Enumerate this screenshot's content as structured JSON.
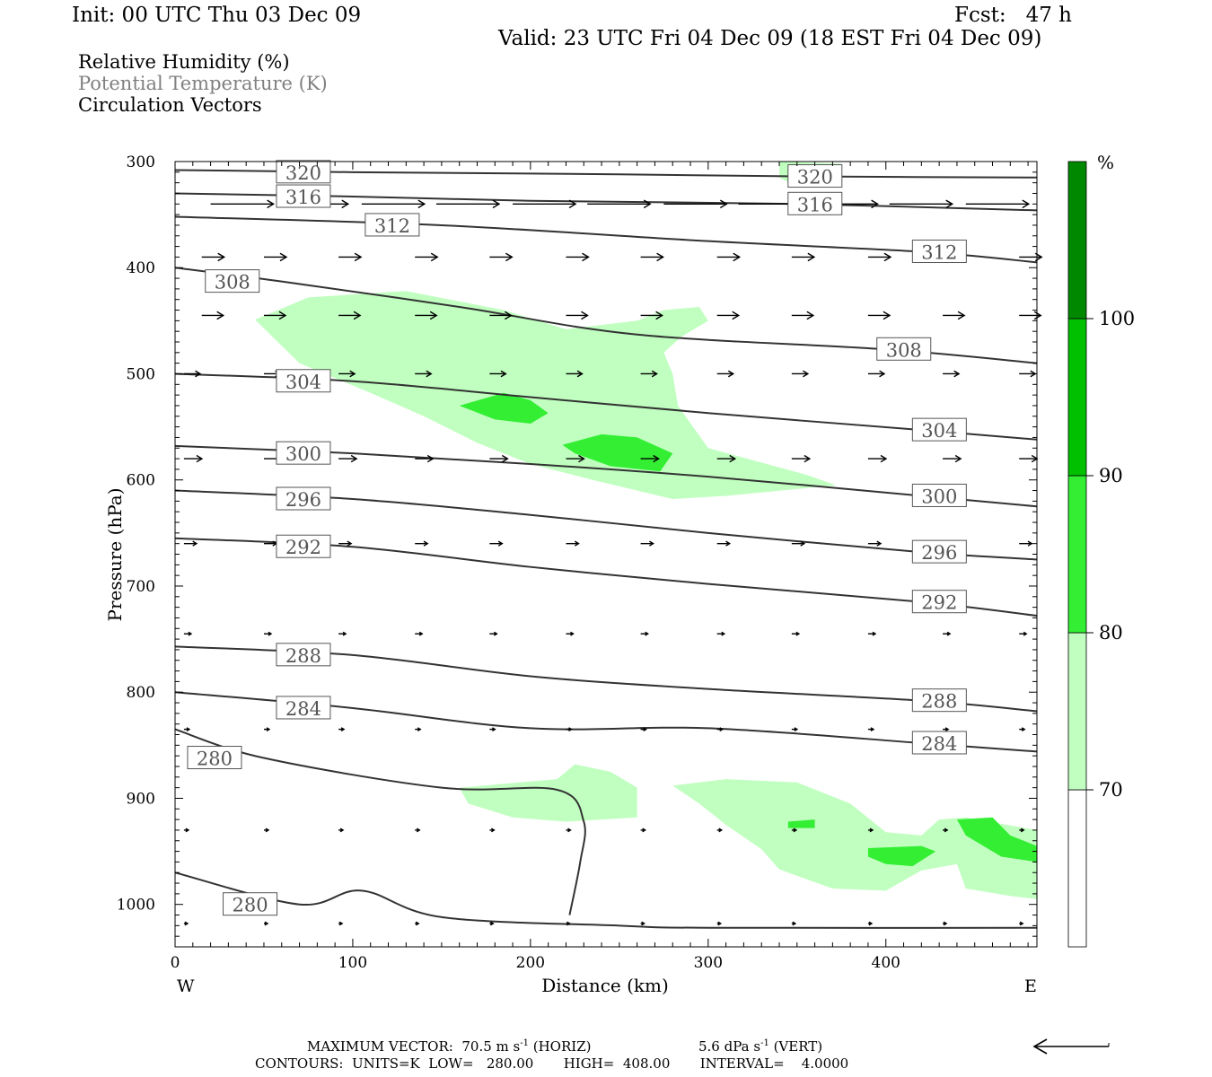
{
  "header": {
    "init": "Init: 00 UTC Thu 03 Dec 09",
    "fcst": "Fcst:   47 h",
    "valid": "Valid: 23 UTC Fri 04 Dec 09 (18 EST Fri 04 Dec 09)",
    "fields": [
      "Relative Humidity (%)",
      "Potential Temperature (K)",
      "Circulation Vectors"
    ]
  },
  "footer": {
    "max_vector": "MAXIMUM VECTOR:  70.5 m s",
    "max_vector_sup": "-1",
    "max_vector_horiz": " (HORIZ)",
    "max_vector_vert": "5.6 dPa s",
    "max_vector_vert_sup": "-1",
    "max_vector_vert_tail": " (VERT)",
    "contours": "CONTOURS:  UNITS=K  LOW=   280.00       HIGH=  408.00       INTERVAL=    4.0000"
  },
  "colors": {
    "rh70": "#c0ffc0",
    "rh80": "#33ee33",
    "rh90": "#00c000",
    "rh100": "#008800",
    "contour": "#333333"
  },
  "chart_data": {
    "type": "cross-section",
    "xlabel": "Distance (km)",
    "ylabel": "Pressure (hPa)",
    "xlim": [
      0,
      485
    ],
    "ylim": [
      1040,
      300
    ],
    "xticks": [
      "0",
      "100",
      "200",
      "300",
      "400"
    ],
    "xtick_values": [
      0,
      100,
      200,
      300,
      400
    ],
    "yticks": [
      "300",
      "400",
      "500",
      "600",
      "700",
      "800",
      "900",
      "1000"
    ],
    "ytick_values": [
      300,
      400,
      500,
      600,
      700,
      800,
      900,
      1000
    ],
    "west_label": "W",
    "east_label": "E",
    "colorbar": {
      "unit": "%",
      "levels": [
        "70",
        "80",
        "90",
        "100"
      ],
      "level_values": [
        70,
        80,
        90,
        100
      ],
      "colors": [
        "#ffffff",
        "#c0ffc0",
        "#33ee33",
        "#00c000",
        "#008800"
      ]
    },
    "theta_contours": [
      {
        "label": "320",
        "points": [
          [
            0,
            308
          ],
          [
            100,
            310
          ],
          [
            250,
            312
          ],
          [
            350,
            314
          ],
          [
            485,
            315
          ]
        ]
      },
      {
        "label": "316",
        "points": [
          [
            0,
            330
          ],
          [
            100,
            333
          ],
          [
            200,
            337
          ],
          [
            350,
            340
          ],
          [
            485,
            346
          ]
        ]
      },
      {
        "label": "312",
        "points": [
          [
            0,
            352
          ],
          [
            150,
            360
          ],
          [
            300,
            375
          ],
          [
            420,
            385
          ],
          [
            485,
            395
          ]
        ]
      },
      {
        "label": "308",
        "points": [
          [
            0,
            400
          ],
          [
            60,
            413
          ],
          [
            160,
            437
          ],
          [
            260,
            463
          ],
          [
            400,
            477
          ],
          [
            485,
            490
          ]
        ]
      },
      {
        "label": "304",
        "points": [
          [
            0,
            500
          ],
          [
            100,
            507
          ],
          [
            200,
            522
          ],
          [
            300,
            537
          ],
          [
            420,
            553
          ],
          [
            485,
            562
          ]
        ]
      },
      {
        "label": "300",
        "points": [
          [
            0,
            568
          ],
          [
            100,
            575
          ],
          [
            200,
            585
          ],
          [
            300,
            597
          ],
          [
            420,
            615
          ],
          [
            485,
            625
          ]
        ]
      },
      {
        "label": "296",
        "points": [
          [
            0,
            610
          ],
          [
            100,
            618
          ],
          [
            200,
            633
          ],
          [
            300,
            650
          ],
          [
            420,
            668
          ],
          [
            485,
            675
          ]
        ]
      },
      {
        "label": "292",
        "points": [
          [
            0,
            655
          ],
          [
            100,
            663
          ],
          [
            200,
            682
          ],
          [
            300,
            698
          ],
          [
            420,
            715
          ],
          [
            485,
            728
          ]
        ]
      },
      {
        "label": "288",
        "points": [
          [
            0,
            757
          ],
          [
            100,
            765
          ],
          [
            200,
            785
          ],
          [
            300,
            797
          ],
          [
            420,
            808
          ],
          [
            485,
            818
          ]
        ]
      },
      {
        "label": "284",
        "points": [
          [
            0,
            800
          ],
          [
            100,
            815
          ],
          [
            200,
            834
          ],
          [
            300,
            834
          ],
          [
            420,
            848
          ],
          [
            485,
            856
          ]
        ]
      },
      {
        "label": "280",
        "points": [
          [
            0,
            835
          ],
          [
            50,
            862
          ],
          [
            150,
            890
          ],
          [
            215,
            892
          ],
          [
            230,
            922
          ],
          [
            228,
            960
          ],
          [
            222,
            1010
          ]
        ]
      },
      {
        "label": "280",
        "points": [
          [
            0,
            970
          ],
          [
            70,
            1000
          ],
          [
            105,
            987
          ],
          [
            150,
            1012
          ],
          [
            250,
            1020
          ],
          [
            300,
            1022
          ],
          [
            485,
            1022
          ]
        ]
      }
    ],
    "rh_regions": [
      {
        "level": 70,
        "points": [
          [
            45,
            449
          ],
          [
            75,
            428
          ],
          [
            130,
            422
          ],
          [
            185,
            440
          ],
          [
            220,
            458
          ],
          [
            260,
            450
          ],
          [
            275,
            440
          ],
          [
            295,
            437
          ],
          [
            300,
            450
          ],
          [
            285,
            465
          ],
          [
            275,
            480
          ],
          [
            280,
            500
          ],
          [
            283,
            530
          ],
          [
            300,
            570
          ],
          [
            355,
            595
          ],
          [
            372,
            605
          ],
          [
            310,
            615
          ],
          [
            280,
            618
          ],
          [
            235,
            600
          ],
          [
            200,
            585
          ],
          [
            170,
            565
          ],
          [
            140,
            540
          ],
          [
            110,
            518
          ],
          [
            70,
            490
          ]
        ]
      },
      {
        "level": 70,
        "points": [
          [
            340,
            300
          ],
          [
            375,
            302
          ],
          [
            375,
            324
          ],
          [
            350,
            324
          ],
          [
            340,
            315
          ]
        ]
      },
      {
        "level": 70,
        "points": [
          [
            160,
            890
          ],
          [
            215,
            882
          ],
          [
            225,
            868
          ],
          [
            245,
            875
          ],
          [
            260,
            890
          ],
          [
            260,
            918
          ],
          [
            220,
            922
          ],
          [
            190,
            918
          ],
          [
            165,
            905
          ]
        ]
      },
      {
        "level": 70,
        "points": [
          [
            280,
            888
          ],
          [
            310,
            882
          ],
          [
            350,
            885
          ],
          [
            380,
            905
          ],
          [
            400,
            932
          ],
          [
            420,
            935
          ],
          [
            430,
            920
          ],
          [
            445,
            918
          ],
          [
            485,
            930
          ],
          [
            485,
            995
          ],
          [
            470,
            992
          ],
          [
            445,
            985
          ],
          [
            440,
            962
          ],
          [
            420,
            968
          ],
          [
            400,
            987
          ],
          [
            370,
            985
          ],
          [
            340,
            967
          ],
          [
            330,
            948
          ],
          [
            310,
            925
          ],
          [
            295,
            905
          ]
        ]
      },
      {
        "level": 80,
        "points": [
          [
            160,
            530
          ],
          [
            185,
            518
          ],
          [
            200,
            525
          ],
          [
            210,
            537
          ],
          [
            200,
            547
          ],
          [
            180,
            543
          ]
        ]
      },
      {
        "level": 80,
        "points": [
          [
            218,
            567
          ],
          [
            240,
            557
          ],
          [
            260,
            560
          ],
          [
            280,
            575
          ],
          [
            273,
            592
          ],
          [
            245,
            587
          ],
          [
            225,
            575
          ]
        ]
      },
      {
        "level": 80,
        "points": [
          [
            345,
            922
          ],
          [
            360,
            920
          ],
          [
            360,
            928
          ],
          [
            345,
            928
          ]
        ]
      },
      {
        "level": 80,
        "points": [
          [
            390,
            947
          ],
          [
            420,
            945
          ],
          [
            428,
            950
          ],
          [
            415,
            964
          ],
          [
            400,
            962
          ],
          [
            390,
            955
          ]
        ]
      },
      {
        "level": 80,
        "points": [
          [
            440,
            920
          ],
          [
            460,
            918
          ],
          [
            470,
            935
          ],
          [
            485,
            945
          ],
          [
            485,
            960
          ],
          [
            465,
            955
          ],
          [
            445,
            935
          ]
        ]
      }
    ],
    "vector_rows": [
      {
        "pressure": 340,
        "length": 70,
        "x": [
          20,
          62,
          105,
          147,
          190,
          232,
          275,
          317,
          360,
          402,
          445
        ]
      },
      {
        "pressure": 390,
        "length": 25,
        "x": [
          15,
          50,
          92,
          135,
          177,
          220,
          262,
          305,
          347,
          390,
          432,
          475
        ]
      },
      {
        "pressure": 445,
        "length": 24,
        "x": [
          15,
          50,
          92,
          135,
          177,
          220,
          262,
          305,
          347,
          390,
          432,
          475
        ]
      },
      {
        "pressure": 500,
        "length": 18,
        "x": [
          5,
          50,
          92,
          135,
          177,
          220,
          262,
          305,
          347,
          390,
          432,
          475
        ]
      },
      {
        "pressure": 580,
        "length": 20,
        "x": [
          5,
          50,
          92,
          135,
          177,
          220,
          262,
          305,
          347,
          390,
          432,
          475
        ]
      },
      {
        "pressure": 660,
        "length": 14,
        "x": [
          5,
          50,
          92,
          135,
          177,
          220,
          262,
          305,
          347,
          390,
          432,
          475
        ]
      },
      {
        "pressure": 745,
        "length": 8,
        "x": [
          5,
          50,
          92,
          135,
          177,
          220,
          262,
          305,
          347,
          390,
          432,
          475
        ]
      },
      {
        "pressure": 835,
        "length": 6,
        "x": [
          5,
          50,
          92,
          135,
          177,
          220,
          262,
          305,
          347,
          390,
          432,
          475
        ]
      },
      {
        "pressure": 930,
        "length": 5,
        "x": [
          5,
          50,
          92,
          135,
          177,
          220,
          262,
          305,
          347,
          390,
          432,
          475
        ]
      },
      {
        "pressure": 1018,
        "length": 4,
        "x": [
          5,
          50,
          92,
          135,
          177,
          220,
          262,
          305,
          347,
          390,
          432,
          475
        ]
      }
    ]
  }
}
